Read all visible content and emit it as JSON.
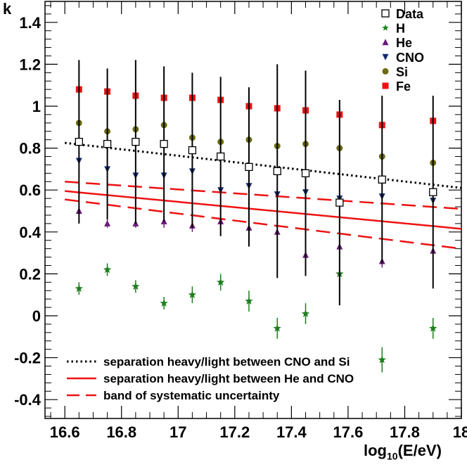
{
  "chart_data": {
    "type": "scatter",
    "xlabel": "log10(E/eV)",
    "xlabel_main": "log",
    "xlabel_sub": "10",
    "xlabel_rest": "(E/eV)",
    "ylabel": "k",
    "xlim": [
      16.53,
      18.0
    ],
    "ylim": [
      -0.49,
      1.5
    ],
    "x_ticks": [
      16.6,
      16.8,
      17,
      17.2,
      17.4,
      17.6,
      17.8,
      18
    ],
    "x_tick_labels": [
      "16.6",
      "16.8",
      "17",
      "17.2",
      "17.4",
      "17.6",
      "17.8",
      "18"
    ],
    "y_ticks": [
      -0.4,
      -0.2,
      0,
      0.2,
      0.4,
      0.6,
      0.8,
      1,
      1.2,
      1.4
    ],
    "y_tick_labels": [
      "-0.4",
      "-0.2",
      "0",
      "0.2",
      "0.4",
      "0.6",
      "0.8",
      "1",
      "1.2",
      "1.4"
    ],
    "series": [
      {
        "name": "Data",
        "marker": "open-square",
        "color": "#000000",
        "x": [
          16.65,
          16.75,
          16.85,
          16.95,
          17.05,
          17.15,
          17.25,
          17.35,
          17.45,
          17.57,
          17.72,
          17.9
        ],
        "y": [
          0.83,
          0.82,
          0.83,
          0.82,
          0.79,
          0.76,
          0.71,
          0.69,
          0.68,
          0.54,
          0.65,
          0.59
        ],
        "err": [
          0.39,
          0.36,
          0.39,
          0.37,
          0.37,
          0.38,
          0.38,
          0.51,
          0.49,
          0.49,
          0.4,
          0.46
        ]
      },
      {
        "name": "H",
        "marker": "star",
        "color": "#1e7f1e",
        "x": [
          16.65,
          16.75,
          16.85,
          16.95,
          17.05,
          17.15,
          17.25,
          17.35,
          17.45,
          17.57,
          17.72,
          17.9
        ],
        "y": [
          0.13,
          0.22,
          0.14,
          0.06,
          0.1,
          0.16,
          0.07,
          -0.06,
          0.01,
          0.2,
          -0.21,
          -0.06
        ],
        "err": [
          0.03,
          0.03,
          0.03,
          0.03,
          0.04,
          0.04,
          0.05,
          0.05,
          0.05,
          0.07,
          0.06,
          0.05
        ]
      },
      {
        "name": "He",
        "marker": "triangle-up",
        "color": "#6a1b7a",
        "x": [
          16.65,
          16.75,
          16.85,
          16.95,
          17.05,
          17.15,
          17.25,
          17.35,
          17.45,
          17.57,
          17.72,
          17.9
        ],
        "y": [
          0.5,
          0.44,
          0.44,
          0.45,
          0.43,
          0.45,
          0.42,
          0.4,
          0.29,
          0.33,
          0.26,
          0.31
        ],
        "err": [
          0.02,
          0.02,
          0.02,
          0.03,
          0.03,
          0.03,
          0.03,
          0.04,
          0.05,
          0.04,
          0.03,
          0.04
        ]
      },
      {
        "name": "CNO",
        "marker": "triangle-down",
        "color": "#102a6e",
        "x": [
          16.65,
          16.75,
          16.85,
          16.95,
          17.05,
          17.15,
          17.25,
          17.35,
          17.45,
          17.57,
          17.72,
          17.9
        ],
        "y": [
          0.74,
          0.7,
          0.67,
          0.67,
          0.69,
          0.6,
          0.62,
          0.58,
          0.59,
          0.56,
          0.57,
          0.55
        ],
        "err": [
          0.02,
          0.02,
          0.02,
          0.02,
          0.02,
          0.02,
          0.02,
          0.02,
          0.02,
          0.02,
          0.02,
          0.02
        ]
      },
      {
        "name": "Si",
        "marker": "circle",
        "color": "#6b6b12",
        "x": [
          16.65,
          16.75,
          16.85,
          16.95,
          17.05,
          17.15,
          17.25,
          17.35,
          17.45,
          17.57,
          17.72,
          17.9
        ],
        "y": [
          0.92,
          0.88,
          0.89,
          0.91,
          0.85,
          0.83,
          0.84,
          0.81,
          0.82,
          0.8,
          0.76,
          0.73
        ],
        "err": [
          0.01,
          0.01,
          0.01,
          0.01,
          0.02,
          0.02,
          0.02,
          0.03,
          0.03,
          0.02,
          0.02,
          0.03
        ]
      },
      {
        "name": "Fe",
        "marker": "filled-square",
        "color": "#ee1111",
        "x": [
          16.65,
          16.75,
          16.85,
          16.95,
          17.05,
          17.15,
          17.25,
          17.35,
          17.45,
          17.57,
          17.72,
          17.9
        ],
        "y": [
          1.08,
          1.07,
          1.05,
          1.04,
          1.04,
          1.03,
          1.0,
          0.99,
          0.98,
          0.96,
          0.91,
          0.93
        ],
        "err": [
          0.01,
          0.01,
          0.01,
          0.01,
          0.01,
          0.01,
          0.01,
          0.02,
          0.02,
          0.02,
          0.02,
          0.02
        ]
      }
    ],
    "lines": [
      {
        "name": "separation heavy/light between CNO and Si",
        "style": "dotted",
        "color": "#000000",
        "x": [
          16.6,
          18.0
        ],
        "y": [
          0.825,
          0.61
        ]
      },
      {
        "name": "separation heavy/light between He and CNO",
        "style": "solid",
        "color": "#ee1111",
        "x": [
          16.6,
          18.0
        ],
        "y": [
          0.595,
          0.415
        ]
      },
      {
        "name": "band of systematic uncertainty",
        "style": "dashed",
        "color": "#ee1111",
        "x": [
          16.6,
          18.0
        ],
        "y": [
          0.64,
          0.51
        ]
      },
      {
        "name": "",
        "style": "dashed",
        "color": "#ee1111",
        "x": [
          16.6,
          18.0
        ],
        "y": [
          0.555,
          0.32
        ]
      }
    ],
    "legend_top_right": [
      "Data",
      "H",
      "He",
      "CNO",
      "Si",
      "Fe"
    ],
    "legend_bottom_left": [
      "separation heavy/light between CNO and Si",
      "separation heavy/light between He and CNO",
      "band of systematic uncertainty"
    ]
  }
}
